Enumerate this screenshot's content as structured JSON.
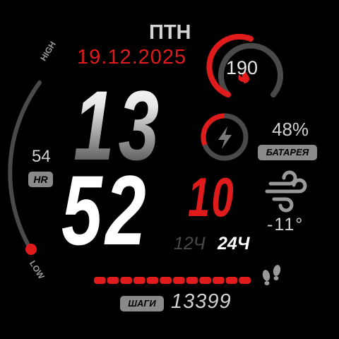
{
  "date": {
    "weekday": "ПТН",
    "date": "19.12.2025"
  },
  "time": {
    "hours": "13",
    "minutes": "52",
    "seconds": "10",
    "format_12": "12Ч",
    "format_24": "24Ч",
    "format_24_selected": true
  },
  "heart_rate": {
    "value": "54",
    "label": "HR",
    "scale_high": "HIGH",
    "scale_low": "LOW",
    "level": 0.0
  },
  "calories": {
    "value": "190",
    "progress": 0.5,
    "icon": "flame-icon"
  },
  "battery": {
    "value": "48%",
    "label": "БАТАРЕЯ",
    "progress": 0.48,
    "icon": "lightning-icon"
  },
  "weather": {
    "temperature": "-11°",
    "icon": "wind-icon"
  },
  "steps": {
    "label": "ШАГИ",
    "value": "13399",
    "segments_total": 12,
    "segments_filled": 12,
    "icon": "footprints-icon"
  },
  "colors": {
    "accent": "#e01b1b",
    "track": "#4a4a4a",
    "text": "#d0d0d0",
    "badge": "#8a8a8a"
  }
}
